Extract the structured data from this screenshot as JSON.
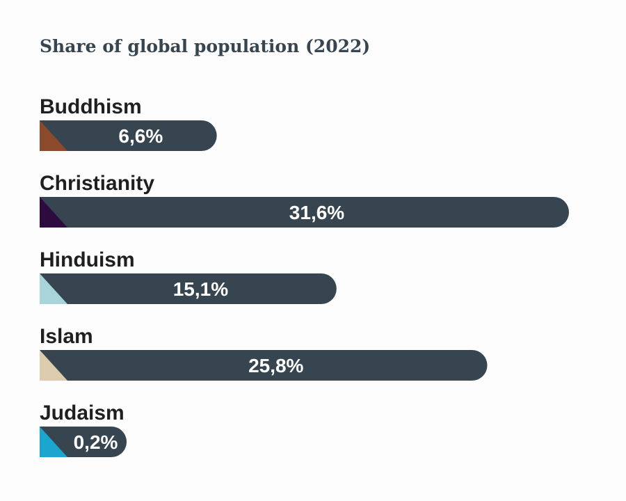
{
  "chart_data": {
    "type": "bar",
    "orientation": "horizontal",
    "title": "Share of global population (2022)",
    "categories": [
      "Buddhism",
      "Christianity",
      "Hinduism",
      "Islam",
      "Judaism"
    ],
    "values": [
      6.6,
      31.6,
      15.1,
      25.8,
      0.2
    ],
    "value_labels": [
      "6,6%",
      "31,6%",
      "15,1%",
      "25,8%",
      "0,2%"
    ],
    "unit": "%",
    "xlim": [
      0,
      31.6
    ],
    "grid": false,
    "legend": "none",
    "bar_color": "#36454f",
    "category_colors": [
      "#8b4a2b",
      "#2d0a3f",
      "#a8d4da",
      "#dccbad",
      "#1aa6cf"
    ]
  }
}
